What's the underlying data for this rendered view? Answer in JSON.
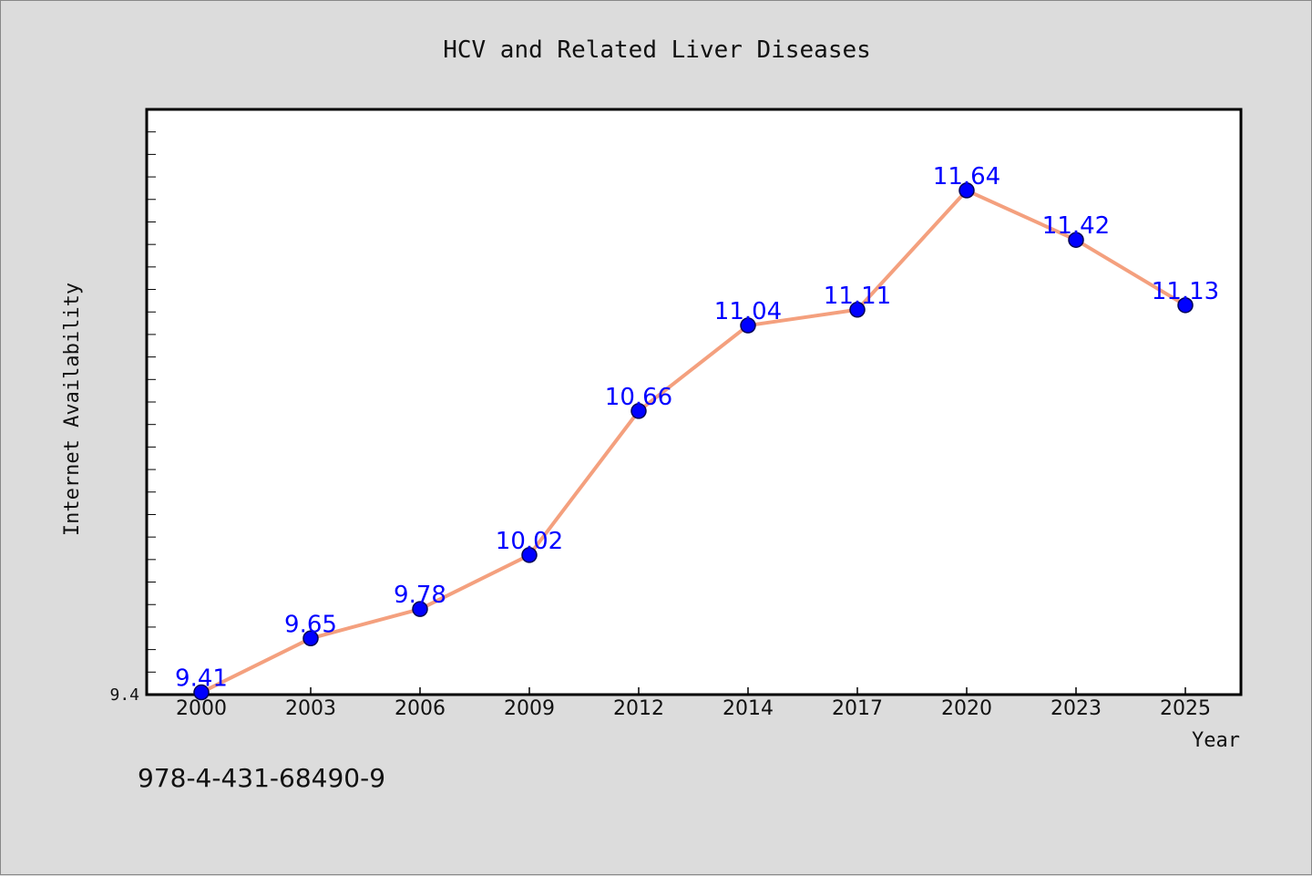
{
  "colors": {
    "background": "#dcdcdc",
    "plot_background": "#ffffff",
    "line": "#f4a07e",
    "marker_fill": "#0000ff",
    "marker_edge": "#000055",
    "data_label": "#0000ff"
  },
  "footer": {
    "code": "978-4-431-68490-9"
  },
  "chart_data": {
    "type": "line",
    "title": "HCV and Related Liver Diseases",
    "xlabel": "Year",
    "ylabel": "Internet Availability",
    "categories": [
      "2000",
      "2003",
      "2006",
      "2009",
      "2012",
      "2014",
      "2017",
      "2020",
      "2023",
      "2025"
    ],
    "series": [
      {
        "values": [
          9.41,
          9.65,
          9.78,
          10.02,
          10.66,
          11.04,
          11.11,
          11.64,
          11.42,
          11.13
        ],
        "labels": [
          "9.41",
          "9.65",
          "9.78",
          "10.02",
          "10.66",
          "11.04",
          "11.11",
          "11.64",
          "11.42",
          "11.13"
        ]
      }
    ],
    "ylim": [
      9.4,
      12.0
    ],
    "yticks": [
      "9.4"
    ],
    "ytick_values": [
      9.4
    ],
    "minor_ytick_step": 0.1,
    "grid": false,
    "legend": "none"
  }
}
